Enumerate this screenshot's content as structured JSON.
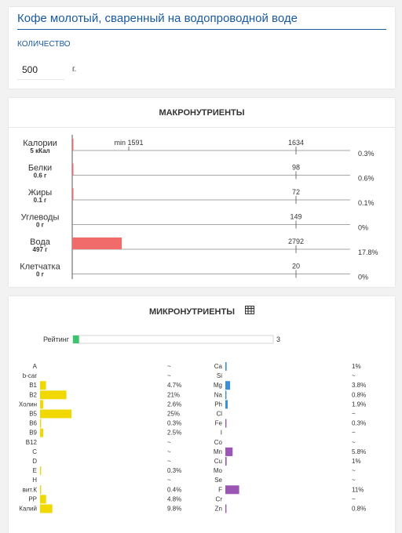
{
  "food": {
    "title": "Кофе молотый, сваренный на водопроводной воде",
    "quantity_label": "КОЛИЧЕСТВО",
    "quantity_value": "500",
    "quantity_unit": "г."
  },
  "macros": {
    "heading": "МАКРОНУТРИЕНТЫ",
    "min_label": "min 1591",
    "max_value": 2792,
    "bar_color": "#f26b6b",
    "items": [
      {
        "name": "Калории",
        "amount": "5 кКал",
        "value": 5,
        "target": "1634",
        "target_value": 1634,
        "percent": "0.3%"
      },
      {
        "name": "Белки",
        "amount": "0.6 г",
        "value": 0.6,
        "target": "98",
        "target_value": 98,
        "percent": "0.6%"
      },
      {
        "name": "Жиры",
        "amount": "0.1 г",
        "value": 0.1,
        "target": "72",
        "target_value": 72,
        "percent": "0.1%"
      },
      {
        "name": "Углеводы",
        "amount": "0 г",
        "value": 0,
        "target": "149",
        "target_value": 149,
        "percent": "0%"
      },
      {
        "name": "Вода",
        "amount": "497 г",
        "value": 497,
        "target": "2792",
        "target_value": 2792,
        "percent": "17.8%"
      },
      {
        "name": "Клетчатка",
        "amount": "0 г",
        "value": 0,
        "target": "20",
        "target_value": 20,
        "percent": "0%"
      }
    ]
  },
  "micros": {
    "heading": "МИКРОНУТРИЕНТЫ",
    "table_icon": "table-icon",
    "rating_label": "Рейтинг",
    "rating_value": "3",
    "rating_fraction": 0.03,
    "rating_color": "#3dc46e",
    "vitamin_color": "#f0d800",
    "mineral_blue": "#3b8fd8",
    "mineral_purple": "#9a55b5",
    "vitamins": [
      {
        "name": "A",
        "percent": "~",
        "level": 0
      },
      {
        "name": "b-car",
        "percent": "~",
        "level": 0
      },
      {
        "name": "B1",
        "percent": "4.7%",
        "level": 4.7
      },
      {
        "name": "B2",
        "percent": "21%",
        "level": 21
      },
      {
        "name": "Холин",
        "percent": "2.6%",
        "level": 2.6
      },
      {
        "name": "B5",
        "percent": "25%",
        "level": 25
      },
      {
        "name": "B6",
        "percent": "0.3%",
        "level": 0.3
      },
      {
        "name": "B9",
        "percent": "2.5%",
        "level": 2.5
      },
      {
        "name": "B12",
        "percent": "~",
        "level": 0
      },
      {
        "name": "C",
        "percent": "~",
        "level": 0
      },
      {
        "name": "D",
        "percent": "~",
        "level": 0
      },
      {
        "name": "E",
        "percent": "0.3%",
        "level": 0.3
      },
      {
        "name": "H",
        "percent": "~",
        "level": 0
      },
      {
        "name": "вит.К",
        "percent": "0.4%",
        "level": 0.4
      },
      {
        "name": "PP",
        "percent": "4.8%",
        "level": 4.8
      },
      {
        "name": "Калий",
        "percent": "9.8%",
        "level": 9.8
      }
    ],
    "minerals": [
      {
        "name": "Ca",
        "percent": "1%",
        "level": 1,
        "color": "blue"
      },
      {
        "name": "Si",
        "percent": "~",
        "level": 0,
        "color": "blue"
      },
      {
        "name": "Mg",
        "percent": "3.8%",
        "level": 3.8,
        "color": "blue"
      },
      {
        "name": "Na",
        "percent": "0.8%",
        "level": 0.8,
        "color": "blue"
      },
      {
        "name": "Ph",
        "percent": "1.9%",
        "level": 1.9,
        "color": "blue"
      },
      {
        "name": "Cl",
        "percent": "~",
        "level": 0,
        "color": "blue"
      },
      {
        "name": "Fe",
        "percent": "0.3%",
        "level": 0.3,
        "color": "purple"
      },
      {
        "name": "I",
        "percent": "~",
        "level": 0,
        "color": "purple"
      },
      {
        "name": "Co",
        "percent": "~",
        "level": 0,
        "color": "purple"
      },
      {
        "name": "Mn",
        "percent": "5.8%",
        "level": 5.8,
        "color": "purple"
      },
      {
        "name": "Cu",
        "percent": "1%",
        "level": 1,
        "color": "purple"
      },
      {
        "name": "Mo",
        "percent": "~",
        "level": 0,
        "color": "purple"
      },
      {
        "name": "Se",
        "percent": "~",
        "level": 0,
        "color": "purple"
      },
      {
        "name": "F",
        "percent": "11%",
        "level": 11,
        "color": "purple"
      },
      {
        "name": "Cr",
        "percent": "~",
        "level": 0,
        "color": "purple"
      },
      {
        "name": "Zn",
        "percent": "0.8%",
        "level": 0.8,
        "color": "purple"
      }
    ]
  }
}
